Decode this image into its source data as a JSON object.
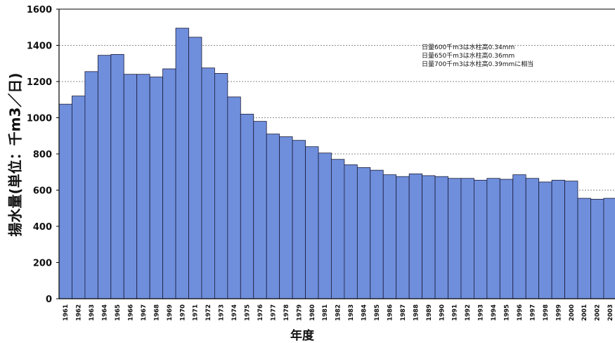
{
  "chart_data": {
    "type": "bar",
    "title": "",
    "xlabel": "年度",
    "ylabel": "揚水量(単位：千m3／日)",
    "ylim": [
      0,
      1600
    ],
    "yticks": [
      0,
      200,
      400,
      600,
      800,
      1000,
      1200,
      1400,
      1600
    ],
    "grid": "dotted horizontal",
    "bar_color": "#6f8fdc",
    "categories": [
      "1961",
      "1962",
      "1963",
      "1964",
      "1965",
      "1966",
      "1967",
      "1968",
      "1969",
      "1970",
      "1971",
      "1972",
      "1973",
      "1974",
      "1975",
      "1976",
      "1977",
      "1978",
      "1979",
      "1980",
      "1981",
      "1982",
      "1983",
      "1984",
      "1985",
      "1986",
      "1987",
      "1988",
      "1989",
      "1990",
      "1991",
      "1992",
      "1993",
      "1994",
      "1995",
      "1996",
      "1997",
      "1998",
      "1999",
      "2000",
      "2001",
      "2002",
      "2003"
    ],
    "values": [
      1075,
      1120,
      1255,
      1345,
      1350,
      1240,
      1240,
      1225,
      1270,
      1495,
      1445,
      1275,
      1245,
      1115,
      1020,
      980,
      910,
      895,
      875,
      840,
      805,
      770,
      740,
      725,
      710,
      685,
      675,
      690,
      680,
      675,
      665,
      665,
      655,
      665,
      660,
      685,
      665,
      645,
      655,
      650,
      555,
      550,
      555
    ],
    "annotations": [
      "日量600千m3は水柱高0.34mm",
      "日量650千m3は水柱高0.36mm",
      "日量700千m3は水柱高0.39mmに相当"
    ]
  }
}
